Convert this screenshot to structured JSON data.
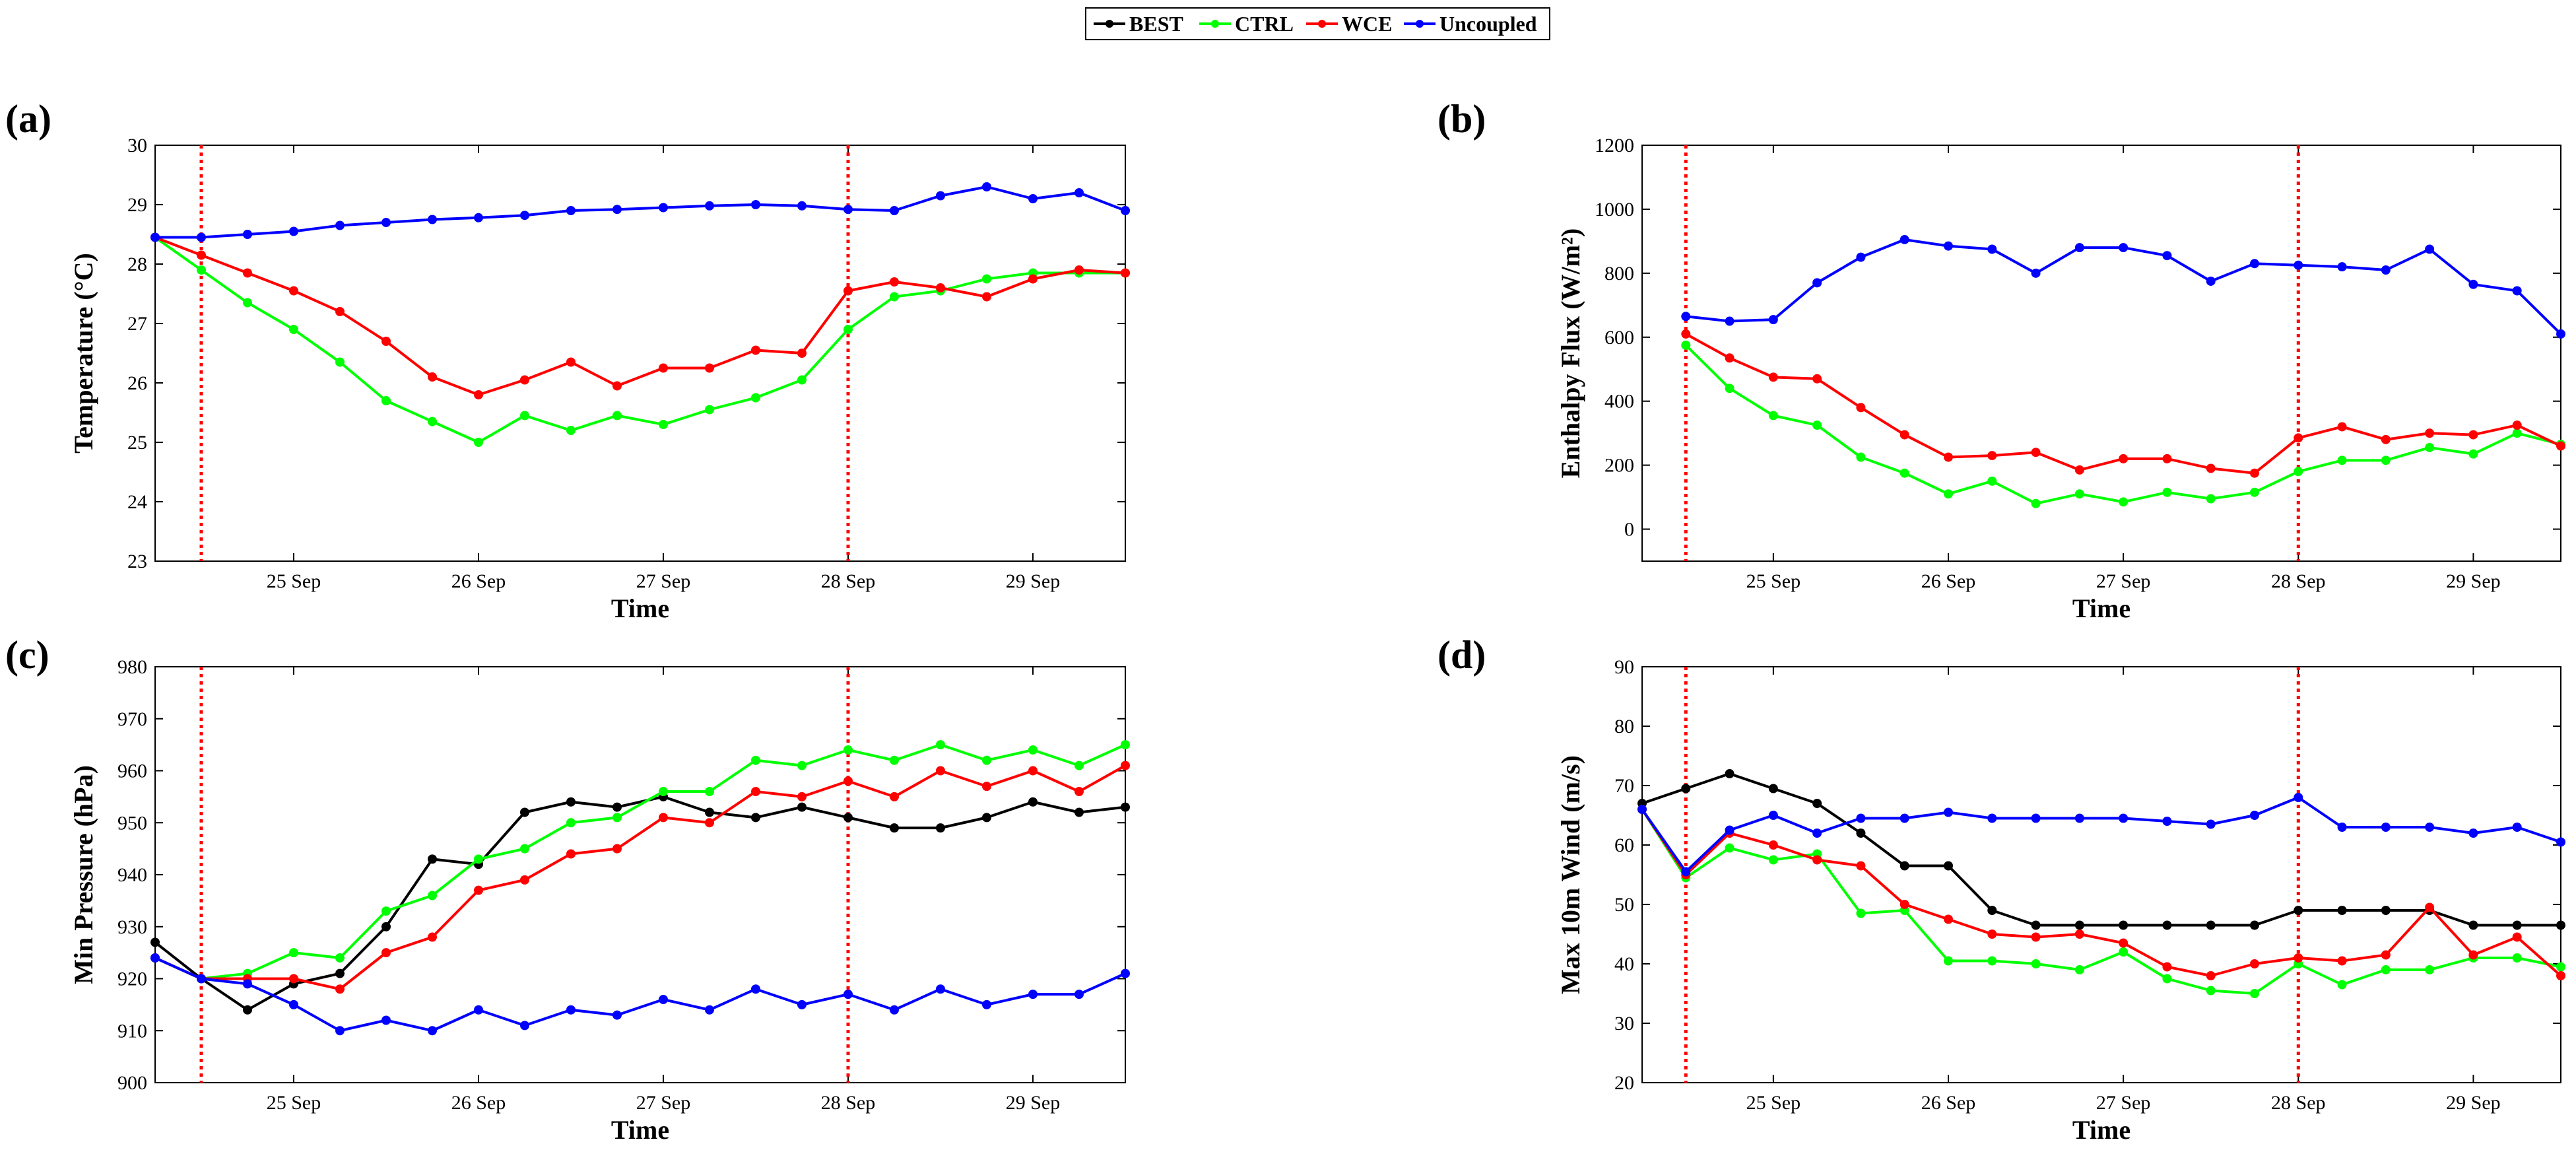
{
  "legend": {
    "entries": [
      {
        "name": "BEST",
        "color": "#000000"
      },
      {
        "name": "CTRL",
        "color": "#00ff00"
      },
      {
        "name": "WCE",
        "color": "#ff0000"
      },
      {
        "name": "Uncoupled",
        "color": "#0000ff"
      }
    ]
  },
  "chart_data": [
    {
      "type": "line",
      "panel_label": "(a)",
      "xlabel": "Time",
      "ylabel": "Temperature (°C)",
      "xticks": [
        "25 Sep",
        "26 Sep",
        "27 Sep",
        "28 Sep",
        "29 Sep"
      ],
      "xlim": [
        24.25,
        29.5
      ],
      "ylim": [
        23,
        30
      ],
      "yticks": [
        23,
        24,
        25,
        26,
        27,
        28,
        29,
        30
      ],
      "vlines": [
        24.5,
        28.0
      ],
      "x": [
        24.25,
        24.5,
        24.75,
        25.0,
        25.25,
        25.5,
        25.75,
        26.0,
        26.25,
        26.5,
        26.75,
        27.0,
        27.25,
        27.5,
        27.75,
        28.0,
        28.25,
        28.5,
        28.75,
        29.0,
        29.25,
        29.5
      ],
      "series": [
        {
          "name": "CTRL",
          "color": "#00ff00",
          "values": [
            28.45,
            27.9,
            27.35,
            26.9,
            26.35,
            25.7,
            25.35,
            25.0,
            25.45,
            25.2,
            25.45,
            25.3,
            25.55,
            25.75,
            26.05,
            26.9,
            27.45,
            27.55,
            27.75,
            27.85,
            27.85,
            27.85
          ]
        },
        {
          "name": "WCE",
          "color": "#ff0000",
          "values": [
            28.45,
            28.15,
            27.85,
            27.55,
            27.2,
            26.7,
            26.1,
            25.8,
            26.05,
            26.35,
            25.95,
            26.25,
            26.25,
            26.55,
            26.5,
            27.55,
            27.7,
            27.6,
            27.45,
            27.75,
            27.9,
            27.85
          ]
        },
        {
          "name": "Uncoupled",
          "color": "#0000ff",
          "values": [
            28.45,
            28.45,
            28.5,
            28.55,
            28.65,
            28.7,
            28.75,
            28.78,
            28.82,
            28.9,
            28.92,
            28.95,
            28.98,
            29.0,
            28.98,
            28.92,
            28.9,
            29.15,
            29.3,
            29.1,
            29.2,
            28.9
          ]
        }
      ]
    },
    {
      "type": "line",
      "panel_label": "(b)",
      "xlabel": "Time",
      "ylabel": "Enthalpy Flux (W/m²)",
      "xticks": [
        "25 Sep",
        "26 Sep",
        "27 Sep",
        "28 Sep",
        "29 Sep"
      ],
      "xlim": [
        24.25,
        29.5
      ],
      "ylim": [
        -100,
        1200
      ],
      "yticks": [
        0,
        200,
        400,
        600,
        800,
        1000,
        1200
      ],
      "vlines": [
        24.5,
        28.0
      ],
      "x": [
        24.5,
        24.75,
        25.0,
        25.25,
        25.5,
        25.75,
        26.0,
        26.25,
        26.5,
        26.75,
        27.0,
        27.25,
        27.5,
        27.75,
        28.0,
        28.25,
        28.5,
        28.75,
        29.0,
        29.25,
        29.5
      ],
      "series": [
        {
          "name": "CTRL",
          "color": "#00ff00",
          "values": [
            575,
            440,
            355,
            325,
            225,
            175,
            110,
            150,
            80,
            110,
            85,
            115,
            95,
            115,
            180,
            215,
            215,
            255,
            235,
            300,
            265
          ]
        },
        {
          "name": "WCE",
          "color": "#ff0000",
          "values": [
            610,
            535,
            475,
            470,
            380,
            295,
            225,
            230,
            240,
            185,
            220,
            220,
            190,
            175,
            285,
            320,
            280,
            300,
            295,
            325,
            260
          ]
        },
        {
          "name": "Uncoupled",
          "color": "#0000ff",
          "values": [
            665,
            650,
            655,
            770,
            850,
            905,
            885,
            875,
            800,
            880,
            880,
            855,
            775,
            830,
            825,
            820,
            810,
            875,
            765,
            745,
            610
          ]
        }
      ]
    },
    {
      "type": "line",
      "panel_label": "(c)",
      "xlabel": "Time",
      "ylabel": "Min Pressure (hPa)",
      "xticks": [
        "25 Sep",
        "26 Sep",
        "27 Sep",
        "28 Sep",
        "29 Sep"
      ],
      "xlim": [
        24.25,
        29.5
      ],
      "ylim": [
        900,
        980
      ],
      "yticks": [
        900,
        910,
        920,
        930,
        940,
        950,
        960,
        970,
        980
      ],
      "vlines": [
        24.5,
        28.0
      ],
      "x": [
        24.25,
        24.5,
        24.75,
        25.0,
        25.25,
        25.5,
        25.75,
        26.0,
        26.25,
        26.5,
        26.75,
        27.0,
        27.25,
        27.5,
        27.75,
        28.0,
        28.25,
        28.5,
        28.75,
        29.0,
        29.25,
        29.5
      ],
      "series": [
        {
          "name": "BEST",
          "color": "#000000",
          "values": [
            927,
            920,
            914,
            919,
            921,
            930,
            943,
            942,
            952,
            954,
            953,
            955,
            952,
            951,
            953,
            951,
            949,
            949,
            951,
            954,
            952,
            953
          ]
        },
        {
          "name": "CTRL",
          "color": "#00ff00",
          "values": [
            924,
            920,
            921,
            925,
            924,
            933,
            936,
            943,
            945,
            950,
            951,
            956,
            956,
            962,
            961,
            964,
            962,
            965,
            962,
            964,
            961,
            965
          ]
        },
        {
          "name": "WCE",
          "color": "#ff0000",
          "values": [
            924,
            920,
            920,
            920,
            918,
            925,
            928,
            937,
            939,
            944,
            945,
            951,
            950,
            956,
            955,
            958,
            955,
            960,
            957,
            960,
            956,
            961
          ]
        },
        {
          "name": "Uncoupled",
          "color": "#0000ff",
          "values": [
            924,
            920,
            919,
            915,
            910,
            912,
            910,
            914,
            911,
            914,
            913,
            916,
            914,
            918,
            915,
            917,
            914,
            918,
            915,
            917,
            917,
            921
          ]
        }
      ]
    },
    {
      "type": "line",
      "panel_label": "(d)",
      "xlabel": "Time",
      "ylabel": "Max 10m Wind (m/s)",
      "xticks": [
        "25 Sep",
        "26 Sep",
        "27 Sep",
        "28 Sep",
        "29 Sep"
      ],
      "xlim": [
        24.25,
        29.5
      ],
      "ylim": [
        20,
        90
      ],
      "yticks": [
        20,
        30,
        40,
        50,
        60,
        70,
        80,
        90
      ],
      "vlines": [
        24.5,
        28.0
      ],
      "x": [
        24.25,
        24.5,
        24.75,
        25.0,
        25.25,
        25.5,
        25.75,
        26.0,
        26.25,
        26.5,
        26.75,
        27.0,
        27.25,
        27.5,
        27.75,
        28.0,
        28.25,
        28.5,
        28.75,
        29.0,
        29.25,
        29.5
      ],
      "series": [
        {
          "name": "BEST",
          "color": "#000000",
          "values": [
            67,
            69.5,
            72,
            69.5,
            67,
            62,
            56.5,
            56.5,
            49,
            46.5,
            46.5,
            46.5,
            46.5,
            46.5,
            46.5,
            49,
            49,
            49,
            49,
            46.5,
            46.5,
            46.5
          ]
        },
        {
          "name": "CTRL",
          "color": "#00ff00",
          "values": [
            66,
            54.5,
            59.5,
            57.5,
            58.5,
            48.5,
            49,
            40.5,
            40.5,
            40,
            39,
            42,
            37.5,
            35.5,
            35,
            40,
            36.5,
            39,
            39,
            41,
            41,
            39.5
          ]
        },
        {
          "name": "WCE",
          "color": "#ff0000",
          "values": [
            66,
            55,
            62,
            60,
            57.5,
            56.5,
            50,
            47.5,
            45,
            44.5,
            45,
            43.5,
            39.5,
            38,
            40,
            41,
            40.5,
            41.5,
            49.5,
            41.5,
            44.5,
            38
          ]
        },
        {
          "name": "Uncoupled",
          "color": "#0000ff",
          "values": [
            66,
            55.5,
            62.5,
            65,
            62,
            64.5,
            64.5,
            65.5,
            64.5,
            64.5,
            64.5,
            64.5,
            64,
            63.5,
            65,
            68,
            63,
            63,
            63,
            62,
            63,
            60.5
          ]
        }
      ]
    }
  ]
}
